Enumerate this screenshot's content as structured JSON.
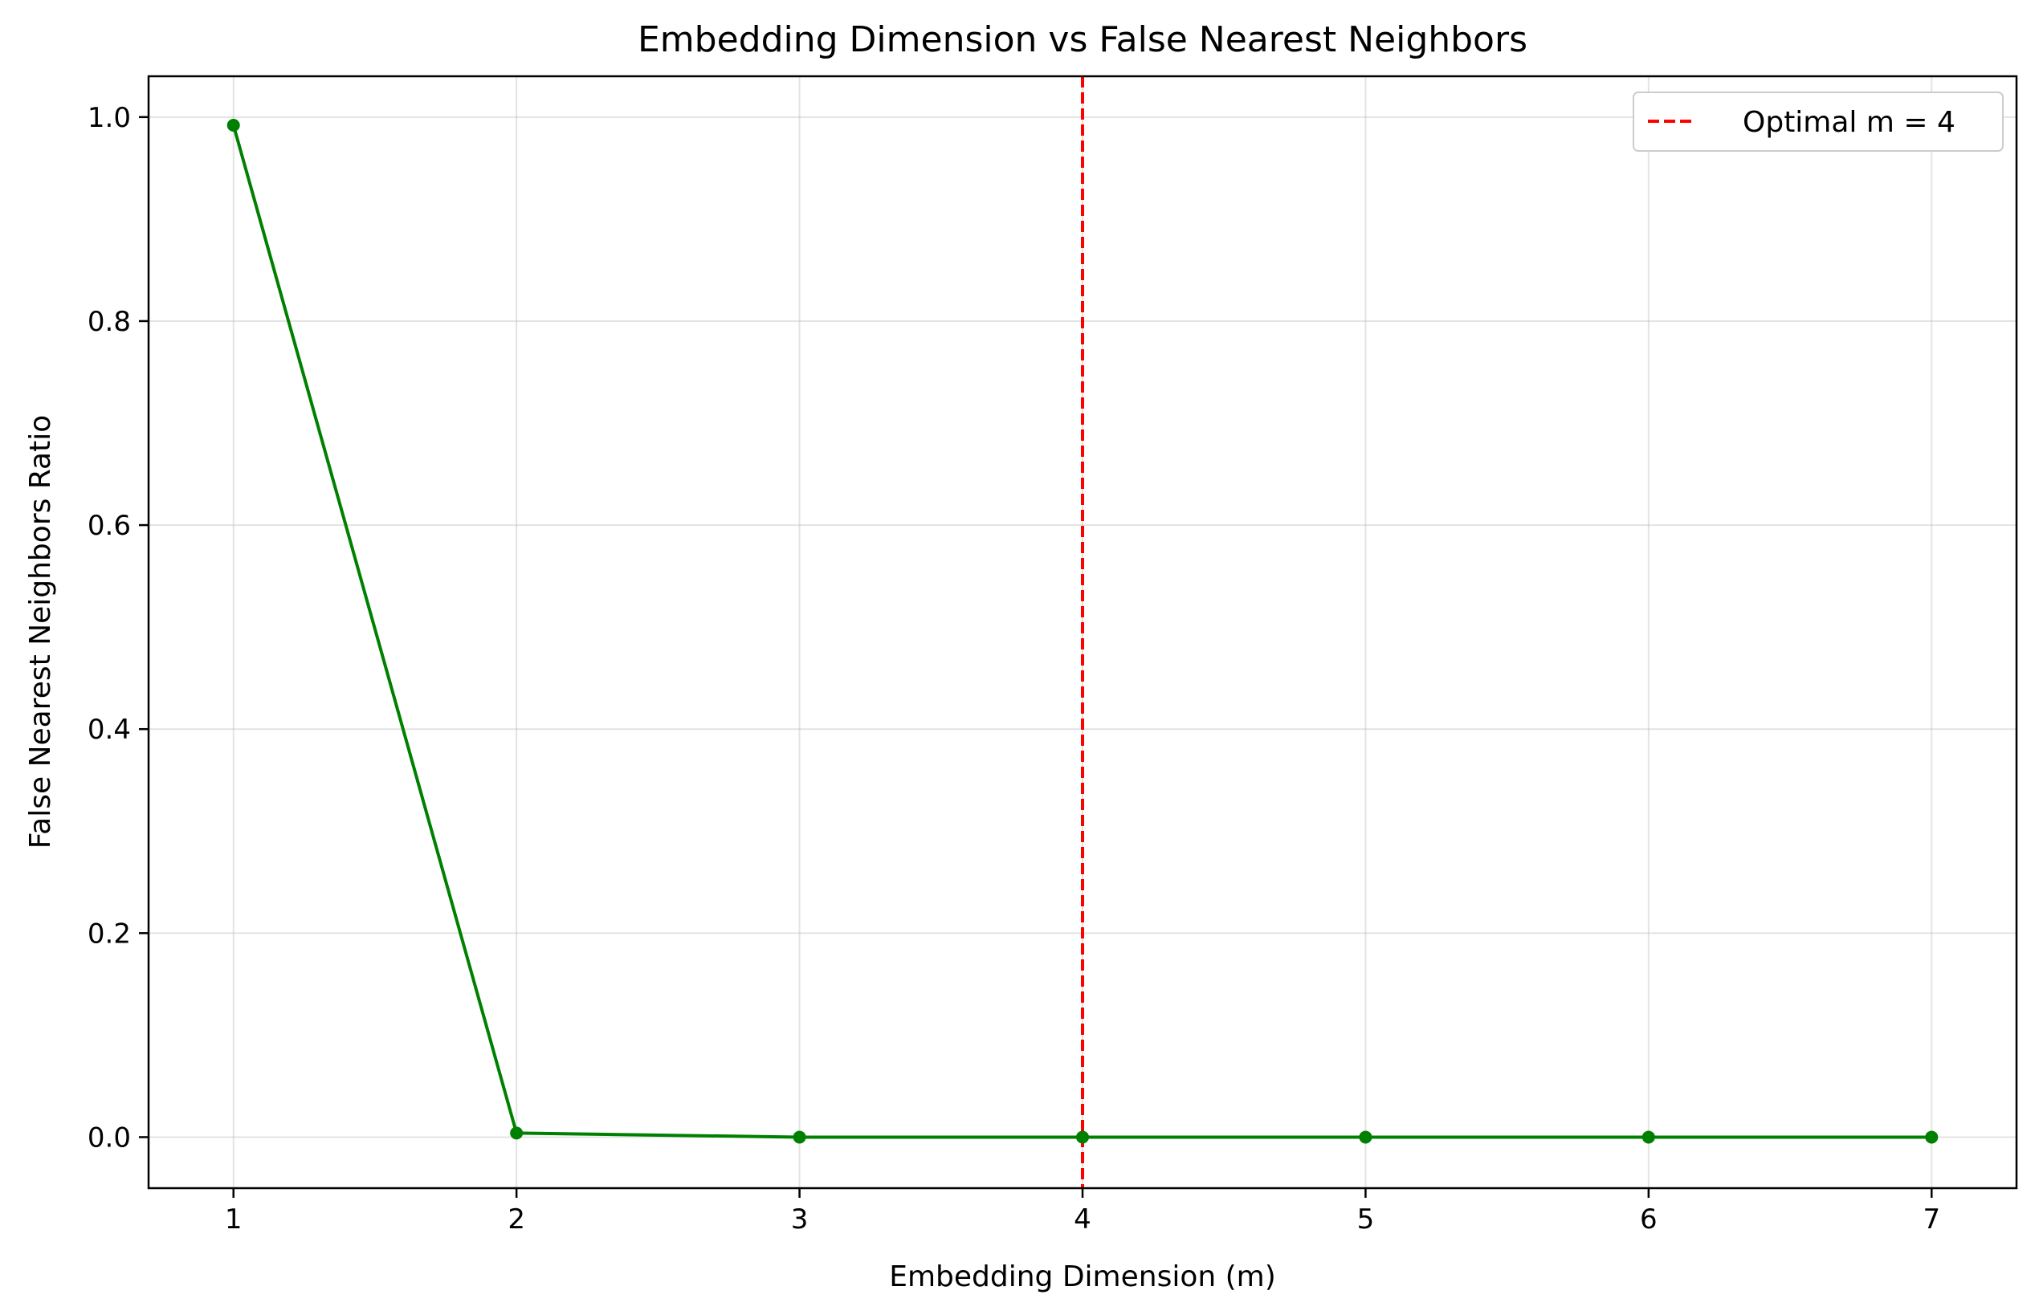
{
  "chart_data": {
    "type": "line",
    "title": "Embedding Dimension vs False Nearest Neighbors",
    "xlabel": "Embedding Dimension (m)",
    "ylabel": "False Nearest Neighbors Ratio",
    "xlim": [
      0.7,
      7.3
    ],
    "ylim": [
      -0.05,
      1.04
    ],
    "xticks": [
      1,
      2,
      3,
      4,
      5,
      6,
      7
    ],
    "yticks": [
      0.0,
      0.2,
      0.4,
      0.6,
      0.8,
      1.0
    ],
    "xtick_labels": [
      "1",
      "2",
      "3",
      "4",
      "5",
      "6",
      "7"
    ],
    "ytick_labels": [
      "0.0",
      "0.2",
      "0.4",
      "0.6",
      "0.8",
      "1.0"
    ],
    "grid": true,
    "series": [
      {
        "x": [
          1,
          2,
          3,
          4,
          5,
          6,
          7
        ],
        "values": [
          0.992,
          0.004,
          0.0,
          0.0,
          0.0,
          0.0,
          0.0
        ],
        "color": "#008000",
        "marker": "circle"
      }
    ],
    "reference_lines": [
      {
        "orientation": "vertical",
        "x": 4,
        "label": "Optimal m = 4",
        "color": "#ff0000",
        "style": "dashed"
      }
    ],
    "legend": {
      "placement": "top-right",
      "entries": [
        "Optimal m = 4"
      ]
    }
  }
}
